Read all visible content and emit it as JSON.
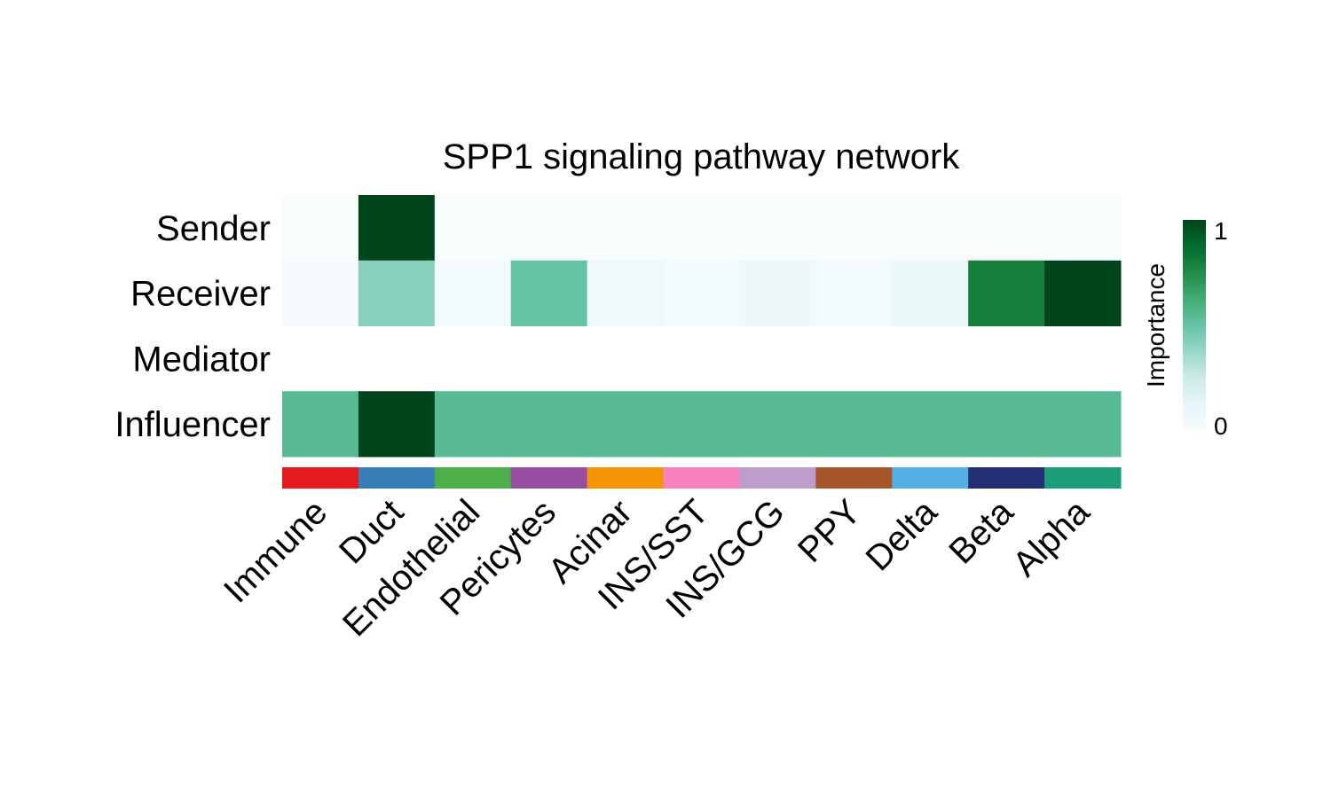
{
  "chart_data": {
    "type": "heatmap",
    "title": "SPP1 signaling pathway network",
    "rows": [
      "Sender",
      "Receiver",
      "Mediator",
      "Influencer"
    ],
    "columns": [
      "Immune",
      "Duct",
      "Endothelial",
      "Pericytes",
      "Acinar",
      "INS/SST",
      "INS/GCG",
      "PPY",
      "Delta",
      "Beta",
      "Alpha"
    ],
    "values": [
      [
        0,
        1,
        0,
        0,
        0,
        0,
        0,
        0,
        0,
        0,
        0
      ],
      [
        0.01,
        0.42,
        0.03,
        0.5,
        0.06,
        0.04,
        0.07,
        0.03,
        0.08,
        0.8,
        1
      ],
      [
        null,
        null,
        null,
        null,
        null,
        null,
        null,
        null,
        null,
        null,
        null
      ],
      [
        0.55,
        1,
        0.55,
        0.55,
        0.55,
        0.55,
        0.55,
        0.55,
        0.55,
        0.55,
        0.55
      ]
    ],
    "column_colors": [
      "#E41A1C",
      "#377EB8",
      "#4DAF4A",
      "#984EA3",
      "#F29403",
      "#F781BF",
      "#BC9DCC",
      "#A65628",
      "#54B0E4",
      "#222F75",
      "#1B9E77"
    ],
    "color_scale": [
      "#F7FCFD",
      "#E5F5F9",
      "#CCECE6",
      "#99D8C9",
      "#66C2A4",
      "#41AE76",
      "#238B45",
      "#006D2C",
      "#00441B"
    ],
    "legend": {
      "title": "Importance",
      "ticks": [
        "0",
        "1"
      ],
      "placement": "right"
    }
  }
}
